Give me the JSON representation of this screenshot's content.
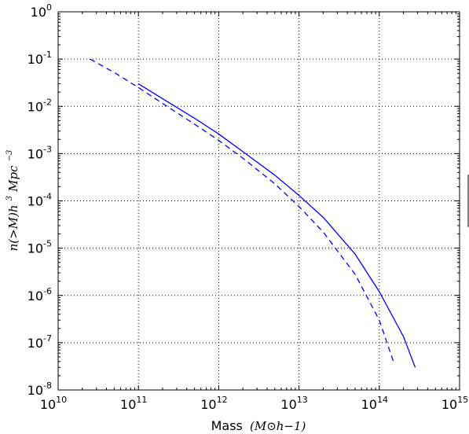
{
  "chart_data": {
    "type": "line",
    "xscale": "log",
    "yscale": "log",
    "xlim": [
      10000000000.0,
      1000000000000000.0
    ],
    "ylim": [
      1e-08,
      1
    ],
    "grid": true,
    "grid_style": "dotted",
    "xlabel": {
      "text": "Mass",
      "math": "(M⊙h−1)"
    },
    "ylabel": {
      "math_base": "n(>M)h",
      "math_sup": "3",
      "math_mid": " Mpc",
      "math_sup2": "−3"
    },
    "xticks": [
      {
        "base": "10",
        "exp": "10",
        "value": 10000000000.0
      },
      {
        "base": "10",
        "exp": "11",
        "value": 100000000000.0
      },
      {
        "base": "10",
        "exp": "12",
        "value": 1000000000000.0
      },
      {
        "base": "10",
        "exp": "13",
        "value": 10000000000000.0
      },
      {
        "base": "10",
        "exp": "14",
        "value": 100000000000000.0
      },
      {
        "base": "10",
        "exp": "15",
        "value": 1000000000000000.0
      }
    ],
    "yticks": [
      {
        "base": "10",
        "exp": "0",
        "value": 1
      },
      {
        "base": "10",
        "exp": "-1",
        "value": 0.1
      },
      {
        "base": "10",
        "exp": "-2",
        "value": 0.01
      },
      {
        "base": "10",
        "exp": "-3",
        "value": 0.001
      },
      {
        "base": "10",
        "exp": "-4",
        "value": 0.0001
      },
      {
        "base": "10",
        "exp": "-5",
        "value": 1e-05
      },
      {
        "base": "10",
        "exp": "-6",
        "value": 1e-06
      },
      {
        "base": "10",
        "exp": "-7",
        "value": 1e-07
      },
      {
        "base": "10",
        "exp": "-8",
        "value": 1e-08
      }
    ],
    "series": [
      {
        "style": "solid",
        "color": "#0000ff",
        "points": [
          [
            100000000000.0,
            0.03
          ],
          [
            200000000000.0,
            0.0145
          ],
          [
            500000000000.0,
            0.0056
          ],
          [
            1000000000000.0,
            0.0026
          ],
          [
            2000000000000.0,
            0.0011
          ],
          [
            5000000000000.0,
            0.00035
          ],
          [
            10000000000000.0,
            0.00013
          ],
          [
            20000000000000.0,
            4.5e-05
          ],
          [
            50000000000000.0,
            7.5e-06
          ],
          [
            100000000000000.0,
            1.2e-06
          ],
          [
            200000000000000.0,
            1.35e-07
          ],
          [
            280000000000000.0,
            3e-08
          ]
        ]
      },
      {
        "style": "dashed",
        "color": "#0000ff",
        "points": [
          [
            25000000000.0,
            0.1
          ],
          [
            50000000000.0,
            0.052
          ],
          [
            100000000000.0,
            0.025
          ],
          [
            200000000000.0,
            0.0115
          ],
          [
            500000000000.0,
            0.0042
          ],
          [
            1000000000000.0,
            0.0019
          ],
          [
            2000000000000.0,
            0.0008
          ],
          [
            5000000000000.0,
            0.00023
          ],
          [
            10000000000000.0,
            7.6e-05
          ],
          [
            20000000000000.0,
            2.2e-05
          ],
          [
            50000000000000.0,
            2.8e-06
          ],
          [
            100000000000000.0,
            3e-07
          ],
          [
            150000000000000.0,
            4e-08
          ]
        ]
      }
    ]
  }
}
